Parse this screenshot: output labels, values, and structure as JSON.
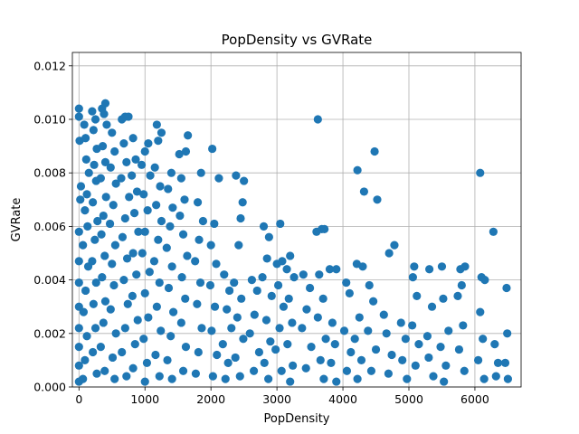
{
  "chart_data": {
    "type": "scatter",
    "title": "PopDensity vs GVRate",
    "xlabel": "PopDensity",
    "ylabel": "GVRate",
    "xlim": [
      -100,
      6700
    ],
    "ylim": [
      0,
      0.0125
    ],
    "xticks": [
      "0",
      "1000",
      "2000",
      "3000",
      "4000",
      "5000",
      "6000"
    ],
    "xtick_values": [
      0,
      1000,
      2000,
      3000,
      4000,
      5000,
      6000
    ],
    "yticks": [
      "0.000",
      "0.002",
      "0.004",
      "0.006",
      "0.008",
      "0.010",
      "0.012"
    ],
    "ytick_values": [
      0,
      0.002,
      0.004,
      0.006,
      0.008,
      0.01,
      0.012
    ],
    "grid": true,
    "color": "#1f77b4",
    "series": [
      {
        "points": [
          [
            0,
            0.0104
          ],
          [
            0,
            0.0101
          ],
          [
            10,
            0.0092
          ],
          [
            30,
            0.0075
          ],
          [
            20,
            0.007
          ],
          [
            0,
            0.0058
          ],
          [
            0,
            0.0047
          ],
          [
            0,
            0.0039
          ],
          [
            0,
            0.003
          ],
          [
            0,
            0.0022
          ],
          [
            0,
            0.0015
          ],
          [
            0,
            0.0008
          ],
          [
            0,
            0.0002
          ],
          [
            80,
            0.0098
          ],
          [
            100,
            0.0093
          ],
          [
            110,
            0.0085
          ],
          [
            150,
            0.008
          ],
          [
            120,
            0.0072
          ],
          [
            90,
            0.0066
          ],
          [
            130,
            0.006
          ],
          [
            60,
            0.0053
          ],
          [
            140,
            0.0045
          ],
          [
            100,
            0.0036
          ],
          [
            70,
            0.0028
          ],
          [
            120,
            0.0019
          ],
          [
            90,
            0.001
          ],
          [
            60,
            0.0003
          ],
          [
            200,
            0.0103
          ],
          [
            250,
            0.01
          ],
          [
            220,
            0.0096
          ],
          [
            270,
            0.0089
          ],
          [
            230,
            0.0083
          ],
          [
            260,
            0.0077
          ],
          [
            210,
            0.0069
          ],
          [
            280,
            0.0062
          ],
          [
            240,
            0.0055
          ],
          [
            200,
            0.0047
          ],
          [
            260,
            0.0039
          ],
          [
            220,
            0.0031
          ],
          [
            250,
            0.0022
          ],
          [
            210,
            0.0013
          ],
          [
            270,
            0.0005
          ],
          [
            350,
            0.0104
          ],
          [
            380,
            0.0102
          ],
          [
            400,
            0.0106
          ],
          [
            420,
            0.0098
          ],
          [
            360,
            0.009
          ],
          [
            400,
            0.0084
          ],
          [
            330,
            0.0078
          ],
          [
            410,
            0.0071
          ],
          [
            370,
            0.0064
          ],
          [
            340,
            0.0057
          ],
          [
            390,
            0.0049
          ],
          [
            350,
            0.0041
          ],
          [
            400,
            0.0032
          ],
          [
            370,
            0.0024
          ],
          [
            330,
            0.0015
          ],
          [
            390,
            0.0006
          ],
          [
            500,
            0.0095
          ],
          [
            540,
            0.0088
          ],
          [
            480,
            0.0082
          ],
          [
            560,
            0.0076
          ],
          [
            520,
            0.0068
          ],
          [
            470,
            0.0061
          ],
          [
            550,
            0.0053
          ],
          [
            500,
            0.0046
          ],
          [
            530,
            0.0038
          ],
          [
            480,
            0.0029
          ],
          [
            560,
            0.002
          ],
          [
            510,
            0.0011
          ],
          [
            540,
            0.0003
          ],
          [
            650,
            0.01
          ],
          [
            700,
            0.0101
          ],
          [
            750,
            0.0101
          ],
          [
            680,
            0.0091
          ],
          [
            720,
            0.0084
          ],
          [
            640,
            0.0078
          ],
          [
            760,
            0.0071
          ],
          [
            700,
            0.0063
          ],
          [
            660,
            0.0056
          ],
          [
            730,
            0.0048
          ],
          [
            680,
            0.004
          ],
          [
            740,
            0.0031
          ],
          [
            700,
            0.0022
          ],
          [
            650,
            0.0013
          ],
          [
            720,
            0.0004
          ],
          [
            820,
            0.0093
          ],
          [
            860,
            0.0085
          ],
          [
            800,
            0.0079
          ],
          [
            880,
            0.0073
          ],
          [
            840,
            0.0065
          ],
          [
            900,
            0.0058
          ],
          [
            820,
            0.005
          ],
          [
            870,
            0.0042
          ],
          [
            810,
            0.0034
          ],
          [
            890,
            0.0025
          ],
          [
            850,
            0.0016
          ],
          [
            820,
            0.0007
          ],
          [
            1000,
            0.0088
          ],
          [
            1050,
            0.0091
          ],
          [
            950,
            0.0083
          ],
          [
            1080,
            0.0079
          ],
          [
            980,
            0.0072
          ],
          [
            1040,
            0.0066
          ],
          [
            1000,
            0.0058
          ],
          [
            960,
            0.005
          ],
          [
            1070,
            0.0043
          ],
          [
            1000,
            0.0035
          ],
          [
            1050,
            0.0026
          ],
          [
            980,
            0.0018
          ],
          [
            1030,
            0.0009
          ],
          [
            1000,
            0.0002
          ],
          [
            1180,
            0.0098
          ],
          [
            1250,
            0.0095
          ],
          [
            1200,
            0.0092
          ],
          [
            1150,
            0.0082
          ],
          [
            1230,
            0.0075
          ],
          [
            1170,
            0.0068
          ],
          [
            1250,
            0.0062
          ],
          [
            1200,
            0.0055
          ],
          [
            1140,
            0.0047
          ],
          [
            1220,
            0.0039
          ],
          [
            1180,
            0.003
          ],
          [
            1240,
            0.0021
          ],
          [
            1160,
            0.0012
          ],
          [
            1220,
            0.0004
          ],
          [
            1400,
            0.008
          ],
          [
            1350,
            0.0074
          ],
          [
            1420,
            0.0067
          ],
          [
            1380,
            0.006
          ],
          [
            1330,
            0.0052
          ],
          [
            1410,
            0.0045
          ],
          [
            1360,
            0.0037
          ],
          [
            1430,
            0.0028
          ],
          [
            1390,
            0.0019
          ],
          [
            1340,
            0.001
          ],
          [
            1410,
            0.0003
          ],
          [
            1520,
            0.0087
          ],
          [
            1650,
            0.0094
          ],
          [
            1620,
            0.0088
          ],
          [
            1550,
            0.0078
          ],
          [
            1600,
            0.007
          ],
          [
            1530,
            0.0064
          ],
          [
            1580,
            0.0057
          ],
          [
            1640,
            0.0049
          ],
          [
            1560,
            0.0041
          ],
          [
            1610,
            0.0033
          ],
          [
            1550,
            0.0024
          ],
          [
            1620,
            0.0015
          ],
          [
            1580,
            0.0006
          ],
          [
            1850,
            0.008
          ],
          [
            1800,
            0.0069
          ],
          [
            1880,
            0.0062
          ],
          [
            1820,
            0.0055
          ],
          [
            1760,
            0.0047
          ],
          [
            1840,
            0.0039
          ],
          [
            1790,
            0.0031
          ],
          [
            1860,
            0.0022
          ],
          [
            1810,
            0.0013
          ],
          [
            1770,
            0.0005
          ],
          [
            2020,
            0.0089
          ],
          [
            2120,
            0.0078
          ],
          [
            2050,
            0.0061
          ],
          [
            2000,
            0.0053
          ],
          [
            2080,
            0.0046
          ],
          [
            1990,
            0.0038
          ],
          [
            2060,
            0.003
          ],
          [
            2010,
            0.0021
          ],
          [
            2090,
            0.0012
          ],
          [
            2030,
            0.0004
          ],
          [
            2200,
            0.0042
          ],
          [
            2280,
            0.0036
          ],
          [
            2240,
            0.0029
          ],
          [
            2310,
            0.0022
          ],
          [
            2180,
            0.0016
          ],
          [
            2260,
            0.0009
          ],
          [
            2220,
            0.0003
          ],
          [
            2380,
            0.0079
          ],
          [
            2500,
            0.0077
          ],
          [
            2480,
            0.0069
          ],
          [
            2450,
            0.0063
          ],
          [
            2420,
            0.0053
          ],
          [
            2350,
            0.0039
          ],
          [
            2460,
            0.0033
          ],
          [
            2400,
            0.0026
          ],
          [
            2490,
            0.0018
          ],
          [
            2370,
            0.0011
          ],
          [
            2440,
            0.0004
          ],
          [
            2620,
            0.004
          ],
          [
            2700,
            0.0036
          ],
          [
            2660,
            0.0027
          ],
          [
            2590,
            0.002
          ],
          [
            2730,
            0.0013
          ],
          [
            2650,
            0.0006
          ],
          [
            2800,
            0.006
          ],
          [
            2880,
            0.0056
          ],
          [
            2850,
            0.0048
          ],
          [
            2780,
            0.0041
          ],
          [
            2920,
            0.0034
          ],
          [
            2840,
            0.0025
          ],
          [
            2900,
            0.0017
          ],
          [
            2810,
            0.0009
          ],
          [
            2870,
            0.0003
          ],
          [
            3050,
            0.0061
          ],
          [
            3000,
            0.0046
          ],
          [
            3080,
            0.0047
          ],
          [
            3020,
            0.0038
          ],
          [
            3100,
            0.003
          ],
          [
            3040,
            0.0022
          ],
          [
            2980,
            0.0014
          ],
          [
            3070,
            0.0006
          ],
          [
            3200,
            0.0049
          ],
          [
            3150,
            0.0044
          ],
          [
            3260,
            0.0041
          ],
          [
            3180,
            0.0033
          ],
          [
            3230,
            0.0024
          ],
          [
            3160,
            0.0016
          ],
          [
            3240,
            0.0008
          ],
          [
            3200,
            0.0002
          ],
          [
            3400,
            0.0042
          ],
          [
            3500,
            0.0037
          ],
          [
            3450,
            0.0029
          ],
          [
            3380,
            0.0022
          ],
          [
            3520,
            0.0015
          ],
          [
            3440,
            0.0007
          ],
          [
            3620,
            0.01
          ],
          [
            3600,
            0.0058
          ],
          [
            3680,
            0.0059
          ],
          [
            3720,
            0.0059
          ],
          [
            3640,
            0.0042
          ],
          [
            3700,
            0.0033
          ],
          [
            3620,
            0.0026
          ],
          [
            3740,
            0.0018
          ],
          [
            3660,
            0.001
          ],
          [
            3710,
            0.0003
          ],
          [
            3800,
            0.0044
          ],
          [
            3900,
            0.0044
          ],
          [
            3840,
            0.0024
          ],
          [
            3880,
            0.0016
          ],
          [
            3820,
            0.0009
          ],
          [
            3900,
            0.0002
          ],
          [
            4050,
            0.0039
          ],
          [
            4100,
            0.0035
          ],
          [
            4020,
            0.0021
          ],
          [
            4120,
            0.0013
          ],
          [
            4060,
            0.0006
          ],
          [
            4220,
            0.0081
          ],
          [
            4210,
            0.0046
          ],
          [
            4300,
            0.0045
          ],
          [
            4250,
            0.0026
          ],
          [
            4180,
            0.0018
          ],
          [
            4280,
            0.001
          ],
          [
            4220,
            0.0003
          ],
          [
            4320,
            0.0073
          ],
          [
            4480,
            0.0088
          ],
          [
            4520,
            0.007
          ],
          [
            4400,
            0.0038
          ],
          [
            4460,
            0.0032
          ],
          [
            4380,
            0.0021
          ],
          [
            4500,
            0.0014
          ],
          [
            4430,
            0.0006
          ],
          [
            4620,
            0.0027
          ],
          [
            4700,
            0.005
          ],
          [
            4780,
            0.0053
          ],
          [
            4660,
            0.002
          ],
          [
            4740,
            0.0012
          ],
          [
            4690,
            0.0005
          ],
          [
            4880,
            0.0024
          ],
          [
            4950,
            0.0018
          ],
          [
            4900,
            0.001
          ],
          [
            4970,
            0.0003
          ],
          [
            5080,
            0.0045
          ],
          [
            5060,
            0.0041
          ],
          [
            5120,
            0.0034
          ],
          [
            5050,
            0.0023
          ],
          [
            5150,
            0.0016
          ],
          [
            5100,
            0.0008
          ],
          [
            5310,
            0.0044
          ],
          [
            5280,
            0.0019
          ],
          [
            5350,
            0.003
          ],
          [
            5300,
            0.0011
          ],
          [
            5370,
            0.0004
          ],
          [
            5500,
            0.0045
          ],
          [
            5520,
            0.0033
          ],
          [
            5600,
            0.0021
          ],
          [
            5480,
            0.0015
          ],
          [
            5560,
            0.0008
          ],
          [
            5530,
            0.0002
          ],
          [
            5780,
            0.0044
          ],
          [
            5740,
            0.0034
          ],
          [
            5850,
            0.0045
          ],
          [
            5800,
            0.0038
          ],
          [
            5820,
            0.0023
          ],
          [
            5760,
            0.0014
          ],
          [
            5840,
            0.0006
          ],
          [
            6080,
            0.008
          ],
          [
            6100,
            0.0041
          ],
          [
            6150,
            0.004
          ],
          [
            6080,
            0.0028
          ],
          [
            6120,
            0.0018
          ],
          [
            6050,
            0.001
          ],
          [
            6140,
            0.0003
          ],
          [
            6280,
            0.0058
          ],
          [
            6300,
            0.0016
          ],
          [
            6350,
            0.0009
          ],
          [
            6320,
            0.0004
          ],
          [
            6480,
            0.0037
          ],
          [
            6490,
            0.002
          ],
          [
            6460,
            0.0009
          ],
          [
            6500,
            0.0003
          ]
        ]
      }
    ]
  }
}
